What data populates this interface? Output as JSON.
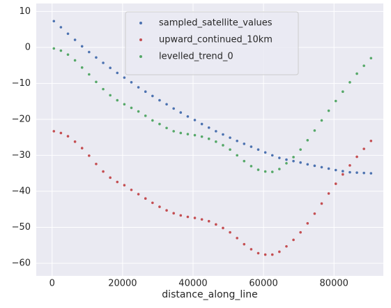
{
  "chart_data": {
    "type": "scatter",
    "x_label": "distance_along_line",
    "x": [
      500,
      2500,
      4500,
      6500,
      8500,
      10500,
      12500,
      14500,
      16500,
      18500,
      20500,
      22500,
      24500,
      26500,
      28500,
      30500,
      32500,
      34500,
      36500,
      38500,
      40500,
      42500,
      44500,
      46500,
      48500,
      50500,
      52500,
      54500,
      56500,
      58500,
      60500,
      62500,
      64500,
      66500,
      68500,
      70500,
      72500,
      74500,
      76500,
      78500,
      80500,
      82500,
      84500,
      86500,
      88500,
      90500
    ],
    "series": [
      {
        "name": "sampled_satellite_values",
        "color": "#4c72b0",
        "values": [
          7.3,
          5.6,
          3.8,
          2.1,
          0.3,
          -1.3,
          -2.8,
          -4.3,
          -5.7,
          -7.1,
          -8.4,
          -9.7,
          -11.1,
          -12.3,
          -13.5,
          -14.7,
          -15.8,
          -17,
          -18.1,
          -19.2,
          -20.2,
          -21.3,
          -22.3,
          -23.3,
          -24.2,
          -25.1,
          -26,
          -26.8,
          -27.6,
          -28.4,
          -29.2,
          -30,
          -30.7,
          -31.2,
          -31.6,
          -32,
          -32.5,
          -32.9,
          -33.3,
          -33.7,
          -34.1,
          -34.4,
          -34.7,
          -34.8,
          -34.9,
          -35
        ]
      },
      {
        "name": "upward_continued_10km",
        "color": "#c44e52",
        "values": [
          -23.3,
          -23.8,
          -24.7,
          -26.2,
          -28,
          -30.1,
          -32.4,
          -34.5,
          -36.2,
          -37.4,
          -38.3,
          -39.6,
          -40.8,
          -42,
          -43.2,
          -44.3,
          -45.3,
          -46.1,
          -46.7,
          -47.1,
          -47.4,
          -47.8,
          -48.3,
          -49.2,
          -50.2,
          -51.4,
          -53,
          -54.7,
          -56.1,
          -57.2,
          -57.6,
          -57.6,
          -56.8,
          -55.3,
          -53.5,
          -51.4,
          -48.9,
          -46.2,
          -43.4,
          -40.6,
          -37.9,
          -35.3,
          -32.8,
          -30.4,
          -28.2,
          -26
        ]
      },
      {
        "name": "levelled_trend_0",
        "color": "#55a868",
        "values": [
          -0.3,
          -0.9,
          -2,
          -3.6,
          -5.6,
          -7.5,
          -9.6,
          -11.6,
          -13.3,
          -14.7,
          -15.8,
          -16.8,
          -17.8,
          -19,
          -20.3,
          -21.3,
          -22.4,
          -23.3,
          -23.8,
          -24.1,
          -24.4,
          -24.8,
          -25.4,
          -26.2,
          -27.2,
          -28.4,
          -30,
          -31.6,
          -33,
          -34,
          -34.5,
          -34.6,
          -33.8,
          -32.2,
          -30.5,
          -28.4,
          -25.8,
          -23.1,
          -20.3,
          -17.6,
          -14.9,
          -12.3,
          -9.7,
          -7.3,
          -5.1,
          -3
        ]
      }
    ],
    "xlim": [
      -4500,
      94000
    ],
    "ylim": [
      -63.5,
      12.2
    ],
    "xticks": [
      0,
      20000,
      40000,
      60000,
      80000
    ],
    "yticks": [
      {
        "value": -60,
        "label": "−60"
      },
      {
        "value": -50,
        "label": "−50"
      },
      {
        "value": -40,
        "label": "−40"
      },
      {
        "value": -30,
        "label": "−30"
      },
      {
        "value": -20,
        "label": "−20"
      },
      {
        "value": -10,
        "label": "−10"
      },
      0,
      10
    ],
    "grid": true,
    "legend": "upper center"
  }
}
